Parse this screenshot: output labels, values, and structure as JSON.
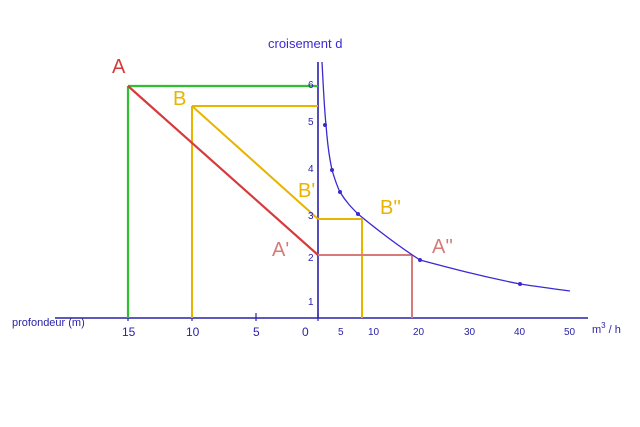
{
  "labels": {
    "top_title": "croisement d",
    "x_left_title": "profondeur (m)",
    "x_right_unit": "m",
    "x_right_unit_sup": "3",
    "x_right_unit_tail": " / h"
  },
  "points": {
    "A": "A",
    "B": "B",
    "A_prime": "A'",
    "B_prime": "B'",
    "A_second": "A''",
    "B_second": "B''"
  },
  "colors": {
    "axis": "#2a22a8",
    "curve": "#3a2ad0",
    "A": "#d63a3a",
    "B": "#e8b400",
    "green": "#2fbf2f"
  },
  "ticks": {
    "left": [
      "15",
      "10",
      "5",
      "0"
    ],
    "right": [
      "5",
      "10",
      "20",
      "30",
      "40",
      "50"
    ],
    "y": [
      "1",
      "2",
      "3",
      "4",
      "5",
      "6"
    ]
  },
  "chart_data": {
    "type": "line",
    "xlabel": "profondeur (m)",
    "ylabel": "",
    "series": [
      {
        "name": "",
        "x": [
          2,
          3,
          5,
          8,
          20,
          40,
          50
        ],
        "y": [
          6,
          5,
          4,
          3.5,
          2,
          1.5,
          1.35
        ]
      }
    ]
  }
}
